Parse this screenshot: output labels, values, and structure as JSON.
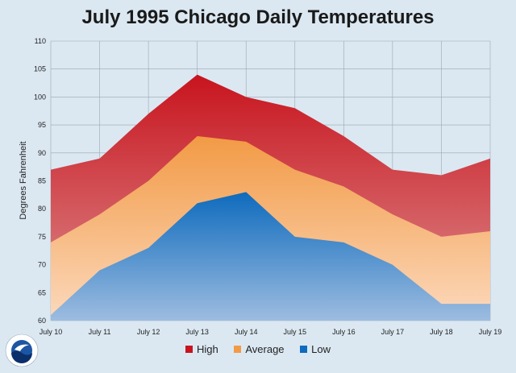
{
  "chart_data": {
    "type": "area",
    "title": "July 1995 Chicago Daily Temperatures",
    "ylabel": "Degrees Fahrenheit",
    "xlabel": "",
    "categories": [
      "July 10",
      "July 11",
      "July 12",
      "July 13",
      "July 14",
      "July 15",
      "July 16",
      "July 17",
      "July 18",
      "July 19"
    ],
    "ylim": [
      60,
      110
    ],
    "yticks": [
      60,
      65,
      70,
      75,
      80,
      85,
      90,
      95,
      100,
      105,
      110
    ],
    "grid": true,
    "legend_position": "bottom",
    "series": [
      {
        "name": "High",
        "key": "high",
        "values": [
          87,
          89,
          97,
          104,
          100,
          98,
          93,
          87,
          86,
          89
        ],
        "color_top": "#c8141e",
        "color_bottom": "#dc9090"
      },
      {
        "name": "Average",
        "key": "average",
        "values": [
          74,
          79,
          85,
          93,
          92,
          87,
          84,
          79,
          75,
          76
        ],
        "color_top": "#f29a45",
        "color_bottom": "#fcd9bd"
      },
      {
        "name": "Low",
        "key": "low",
        "values": [
          61,
          69,
          73,
          81,
          83,
          75,
          74,
          70,
          63,
          63
        ],
        "color_top": "#0e6bbd",
        "color_bottom": "#9dbce0"
      }
    ]
  },
  "logo": {
    "text": "NOAA",
    "colors": {
      "ring": "#ffffff",
      "sky": "#1c56a3",
      "wave": "#0a2f6b",
      "bird": "#ffffff"
    }
  }
}
